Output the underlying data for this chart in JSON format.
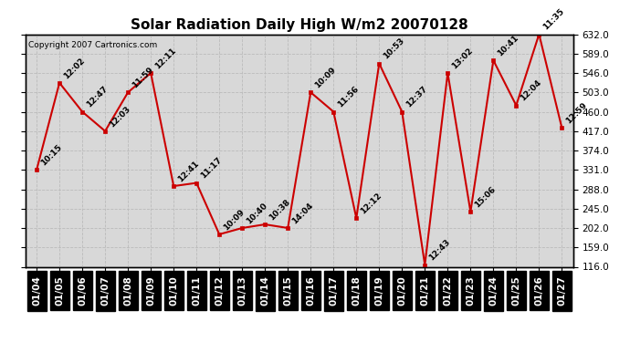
{
  "title": "Solar Radiation Daily High W/m2 20070128",
  "copyright": "Copyright 2007 Cartronics.com",
  "dates": [
    "01/04",
    "01/05",
    "01/06",
    "01/07",
    "01/08",
    "01/09",
    "01/10",
    "01/11",
    "01/12",
    "01/13",
    "01/14",
    "01/15",
    "01/16",
    "01/17",
    "01/18",
    "01/19",
    "01/20",
    "01/21",
    "01/22",
    "01/23",
    "01/24",
    "01/25",
    "01/26",
    "01/27"
  ],
  "values": [
    331,
    524,
    460,
    417,
    503,
    546,
    295,
    302,
    188,
    202,
    210,
    202,
    503,
    460,
    224,
    567,
    460,
    120,
    546,
    238,
    574,
    474,
    632,
    424
  ],
  "times": [
    "10:15",
    "12:02",
    "12:47",
    "12:03",
    "11:59",
    "12:11",
    "12:41",
    "11:17",
    "10:09",
    "10:40",
    "10:38",
    "14:04",
    "10:09",
    "11:56",
    "12:12",
    "10:53",
    "12:37",
    "12:43",
    "13:02",
    "15:06",
    "10:41",
    "12:04",
    "11:35",
    "12:59"
  ],
  "ylim_min": 116.0,
  "ylim_max": 632.0,
  "yticks": [
    116.0,
    159.0,
    202.0,
    245.0,
    288.0,
    331.0,
    374.0,
    417.0,
    460.0,
    503.0,
    546.0,
    589.0,
    632.0
  ],
  "line_color": "#cc0000",
  "marker_color": "#cc0000",
  "bg_color": "#ffffff",
  "plot_bg_color": "#d8d8d8",
  "grid_color": "#bbbbbb",
  "title_fontsize": 11,
  "label_fontsize": 6.5,
  "tick_fontsize": 7.5,
  "copyright_fontsize": 6.5
}
